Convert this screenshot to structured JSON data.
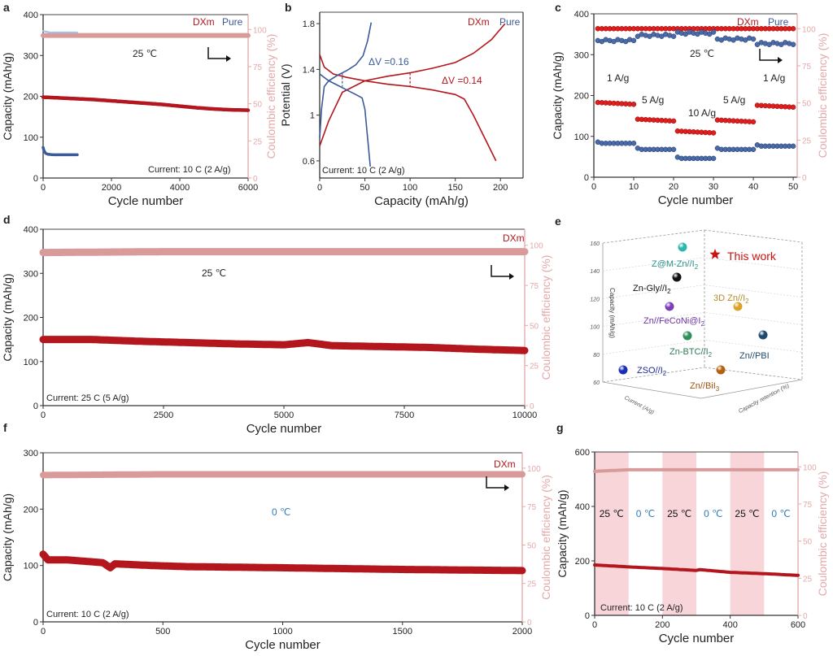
{
  "colors": {
    "dxm": "#b3161d",
    "dxm_bright": "#e01e1e",
    "pure": "#3a5a99",
    "ce": "#d99a9a",
    "ce_axis": "#e3a9a9",
    "shade": "#f7d5d8",
    "blue_text": "#2f7bb8"
  },
  "chart_data": [
    {
      "id": "a",
      "panel_label": "a",
      "type": "scatter",
      "xlabel": "Cycle number",
      "ylabel": "Capacity (mAh/g)",
      "y2label": "Coulombic efficiency (%)",
      "xlim": [
        0,
        6000
      ],
      "ylim": [
        0,
        400
      ],
      "y2lim": [
        0,
        110
      ],
      "xticks": [
        0,
        2000,
        4000,
        6000
      ],
      "yticks": [
        0,
        100,
        200,
        300,
        400
      ],
      "y2ticks": [
        0,
        25,
        50,
        75,
        100
      ],
      "legend": [
        "DXm",
        "Pure"
      ],
      "legend_position": "top-right",
      "annotations": [
        "25 ℃",
        "Current: 10 C (2 A/g)"
      ],
      "series": [
        {
          "name": "DXm capacity",
          "axis": "left",
          "x": [
            0,
            500,
            1000,
            1500,
            2000,
            2500,
            3000,
            3500,
            4000,
            4500,
            5000,
            5500,
            6000
          ],
          "y": [
            198,
            196,
            194,
            192,
            189,
            186,
            183,
            180,
            176,
            172,
            169,
            167,
            166
          ]
        },
        {
          "name": "DXm CE",
          "axis": "right",
          "x": [
            0,
            1000,
            2000,
            3000,
            4000,
            5000,
            6000
          ],
          "y": [
            96,
            96,
            96,
            96,
            96,
            96,
            96
          ]
        },
        {
          "name": "Pure capacity",
          "axis": "left",
          "x": [
            0,
            30,
            80,
            150,
            300,
            600,
            1000
          ],
          "y": [
            75,
            66,
            60,
            58,
            57,
            57,
            57
          ]
        },
        {
          "name": "Pure CE",
          "axis": "right",
          "x": [
            0,
            200,
            500,
            1000
          ],
          "y": [
            99,
            98,
            98,
            98
          ]
        }
      ]
    },
    {
      "id": "b",
      "panel_label": "b",
      "type": "line",
      "xlabel": "Capacity (mAh/g)",
      "ylabel": "Potential (V)",
      "xlim": [
        0,
        225
      ],
      "ylim": [
        0.45,
        1.9
      ],
      "xticks": [
        0,
        50,
        100,
        150,
        200
      ],
      "yticks": [
        0.6,
        1.0,
        1.4,
        1.8
      ],
      "legend": [
        "DXm",
        "Pure"
      ],
      "legend_position": "top-right",
      "annotations": [
        "ΔV =0.16",
        "ΔV =0.14",
        "Current: 10 C (2 A/g)"
      ],
      "series": [
        {
          "name": "DXm charge",
          "x": [
            0,
            10,
            25,
            50,
            75,
            100,
            125,
            150,
            170,
            190,
            205
          ],
          "y": [
            0.73,
            0.95,
            1.2,
            1.3,
            1.34,
            1.37,
            1.41,
            1.46,
            1.54,
            1.66,
            1.8
          ]
        },
        {
          "name": "DXm discharge",
          "x": [
            0,
            5,
            15,
            30,
            50,
            75,
            100,
            125,
            150,
            160,
            170,
            185,
            195
          ],
          "y": [
            1.53,
            1.42,
            1.36,
            1.33,
            1.3,
            1.27,
            1.25,
            1.22,
            1.18,
            1.14,
            1.0,
            0.76,
            0.6
          ]
        },
        {
          "name": "Pure charge",
          "x": [
            0,
            2,
            5,
            10,
            20,
            30,
            40,
            48,
            53,
            57
          ],
          "y": [
            0.8,
            1.05,
            1.25,
            1.3,
            1.35,
            1.39,
            1.44,
            1.52,
            1.65,
            1.81
          ]
        },
        {
          "name": "Pure discharge",
          "x": [
            0,
            10,
            20,
            30,
            40,
            47,
            50,
            53,
            56
          ],
          "y": [
            1.36,
            1.3,
            1.26,
            1.22,
            1.18,
            1.15,
            1.05,
            0.8,
            0.55
          ]
        }
      ]
    },
    {
      "id": "c",
      "panel_label": "c",
      "type": "scatter",
      "xlabel": "Cycle number",
      "ylabel": "Capacity (mAh/g)",
      "y2label": "Coulombic efficiency (%)",
      "xlim": [
        0,
        51
      ],
      "ylim": [
        0,
        400
      ],
      "y2lim": [
        0,
        110
      ],
      "xticks": [
        0,
        10,
        20,
        30,
        40,
        50
      ],
      "yticks": [
        0,
        100,
        200,
        300,
        400
      ],
      "y2ticks": [
        0,
        25,
        50,
        75,
        100
      ],
      "legend": [
        "DXm",
        "Pure"
      ],
      "legend_position": "top-right",
      "annotations": [
        "25 ℃"
      ],
      "rate_labels": [
        "1 A/g",
        "5 A/g",
        "10 A/g",
        "5 A/g",
        "1 A/g"
      ],
      "segments": [
        {
          "rate": "1 A/g",
          "cycles": [
            1,
            10
          ],
          "dxm_capacity": 183,
          "pure_capacity": 83,
          "pure_ce": 92
        },
        {
          "rate": "5 A/g",
          "cycles": [
            11,
            20
          ],
          "dxm_capacity": 142,
          "pure_capacity": 68,
          "pure_ce": 95.5
        },
        {
          "rate": "10 A/g",
          "cycles": [
            21,
            30
          ],
          "dxm_capacity": 113,
          "pure_capacity": 46,
          "pure_ce": 97
        },
        {
          "rate": "5 A/g",
          "cycles": [
            31,
            40
          ],
          "dxm_capacity": 140,
          "pure_capacity": 68,
          "pure_ce": 93
        },
        {
          "rate": "1 A/g",
          "cycles": [
            41,
            50
          ],
          "dxm_capacity": 176,
          "pure_capacity": 76,
          "pure_ce": 90
        }
      ],
      "dxm_ce": 100
    },
    {
      "id": "d",
      "panel_label": "d",
      "type": "scatter",
      "xlabel": "Cycle number",
      "ylabel": "Capacity (mAh/g)",
      "y2label": "Coulombic efficiency (%)",
      "xlim": [
        0,
        10000
      ],
      "ylim": [
        0,
        400
      ],
      "y2lim": [
        0,
        110
      ],
      "xticks": [
        0,
        2500,
        5000,
        7500,
        10000
      ],
      "yticks": [
        0,
        100,
        200,
        300,
        400
      ],
      "y2ticks": [
        0,
        25,
        50,
        75,
        100
      ],
      "legend": [
        "DXm"
      ],
      "legend_position": "top-right",
      "annotations": [
        "25 ℃",
        "Current: 25 C (5 A/g)"
      ],
      "series": [
        {
          "name": "DXm capacity",
          "axis": "left",
          "x": [
            0,
            1000,
            2000,
            3000,
            4000,
            5000,
            5500,
            6000,
            7000,
            8000,
            9000,
            10000
          ],
          "y": [
            150,
            150,
            146,
            143,
            140,
            138,
            143,
            136,
            134,
            132,
            128,
            125
          ]
        },
        {
          "name": "DXm CE",
          "axis": "right",
          "x": [
            0,
            2500,
            5000,
            7500,
            10000
          ],
          "y": [
            95.5,
            96,
            96,
            96,
            96
          ]
        }
      ]
    },
    {
      "id": "e",
      "panel_label": "e",
      "type": "scatter",
      "dimensions": "3d",
      "zlabel": "Capacity (mAh/g)",
      "xlabel": "Current (A/g)",
      "ylabel": "Capacity retention (%)",
      "zlim": [
        60,
        160
      ],
      "zticks": [
        60,
        80,
        100,
        120,
        140,
        160
      ],
      "points": [
        {
          "label": "This work",
          "capacity": 153,
          "color": "#cc1111",
          "marker": "star"
        },
        {
          "label": "Z@M-Zn//I2",
          "capacity": 157,
          "color": "#2fb5b0",
          "marker": "sphere"
        },
        {
          "label": "Zn-Gly//I2",
          "capacity": 137,
          "color": "#111111",
          "marker": "sphere"
        },
        {
          "label": "3D Zn//I2",
          "capacity": 117,
          "color": "#d9a32a",
          "marker": "sphere"
        },
        {
          "label": "Zn//FeCoNi@I2",
          "capacity": 116,
          "color": "#7a3fb5",
          "marker": "sphere"
        },
        {
          "label": "Zn-BTC//I2",
          "capacity": 96,
          "color": "#2f8f5a",
          "marker": "sphere"
        },
        {
          "label": "Zn//PBI",
          "capacity": 97,
          "color": "#1d4a6e",
          "marker": "sphere"
        },
        {
          "label": "ZSO//I2",
          "capacity": 72,
          "color": "#1a2fb5",
          "marker": "sphere"
        },
        {
          "label": "Zn//BiI3",
          "capacity": 72,
          "color": "#b5600f",
          "marker": "sphere"
        }
      ],
      "label_colors": {
        "Z@M-Zn//I2": "#2a8f8a",
        "Zn-Gly//I2": "#111111",
        "3D Zn//I2": "#b58a2a",
        "Zn//FeCoNi@I2": "#6b33a8",
        "Zn-BTC//I2": "#2f7a55",
        "Zn//PBI": "#1d4a6e",
        "ZSO//I2": "#1a2a9a",
        "Zn//BiI3": "#a0520f",
        "This work": "#cc1111"
      }
    },
    {
      "id": "f",
      "panel_label": "f",
      "type": "scatter",
      "xlabel": "Cycle number",
      "ylabel": "Capacity (mAh/g)",
      "y2label": "Coulombic efficiency (%)",
      "xlim": [
        0,
        2000
      ],
      "ylim": [
        0,
        300
      ],
      "y2lim": [
        0,
        110
      ],
      "xticks": [
        0,
        500,
        1000,
        1500,
        2000
      ],
      "yticks": [
        0,
        100,
        200,
        300
      ],
      "y2ticks": [
        0,
        25,
        50,
        75,
        100
      ],
      "legend": [
        "DXm"
      ],
      "legend_position": "top-right",
      "annotations": [
        "0 ℃",
        "Current: 10 C (2 A/g)"
      ],
      "series": [
        {
          "name": "DXm capacity",
          "axis": "left",
          "x": [
            0,
            20,
            50,
            100,
            250,
            280,
            300,
            450,
            600,
            1000,
            1500,
            2000
          ],
          "y": [
            120,
            110,
            110,
            110,
            105,
            96,
            103,
            100,
            98,
            96,
            93,
            91
          ]
        },
        {
          "name": "DXm CE",
          "axis": "right",
          "x": [
            0,
            500,
            1000,
            1500,
            2000
          ],
          "y": [
            95.5,
            96,
            96,
            96,
            96
          ]
        }
      ]
    },
    {
      "id": "g",
      "panel_label": "g",
      "type": "scatter",
      "xlabel": "Cycle number",
      "ylabel": "Capacity (mAh/g)",
      "y2label": "Coulombic efficiency (%)",
      "xlim": [
        0,
        600
      ],
      "ylim": [
        0,
        600
      ],
      "y2lim": [
        0,
        110
      ],
      "xticks": [
        0,
        200,
        400,
        600
      ],
      "yticks": [
        0,
        200,
        400,
        600
      ],
      "y2ticks": [
        0,
        25,
        50,
        75,
        100
      ],
      "annotations": [
        "Current: 10 C (2 A/g)"
      ],
      "temperature_segments": [
        {
          "label": "25 ℃",
          "range": [
            0,
            100
          ],
          "shaded": true
        },
        {
          "label": "0 ℃",
          "range": [
            100,
            200
          ],
          "shaded": false
        },
        {
          "label": "25 ℃",
          "range": [
            200,
            300
          ],
          "shaded": true
        },
        {
          "label": "0 ℃",
          "range": [
            300,
            400
          ],
          "shaded": false
        },
        {
          "label": "25 ℃",
          "range": [
            400,
            500
          ],
          "shaded": true
        },
        {
          "label": "0 ℃",
          "range": [
            500,
            600
          ],
          "shaded": false
        }
      ],
      "series": [
        {
          "name": "DXm capacity",
          "axis": "left",
          "x": [
            0,
            100,
            200,
            300,
            310,
            400,
            500,
            600
          ],
          "y": [
            185,
            178,
            172,
            165,
            168,
            158,
            153,
            147
          ]
        },
        {
          "name": "DXm CE",
          "axis": "right",
          "x": [
            0,
            100,
            200,
            300,
            400,
            500,
            600
          ],
          "y": [
            97,
            98,
            98,
            98,
            98,
            98,
            98
          ]
        }
      ]
    }
  ]
}
